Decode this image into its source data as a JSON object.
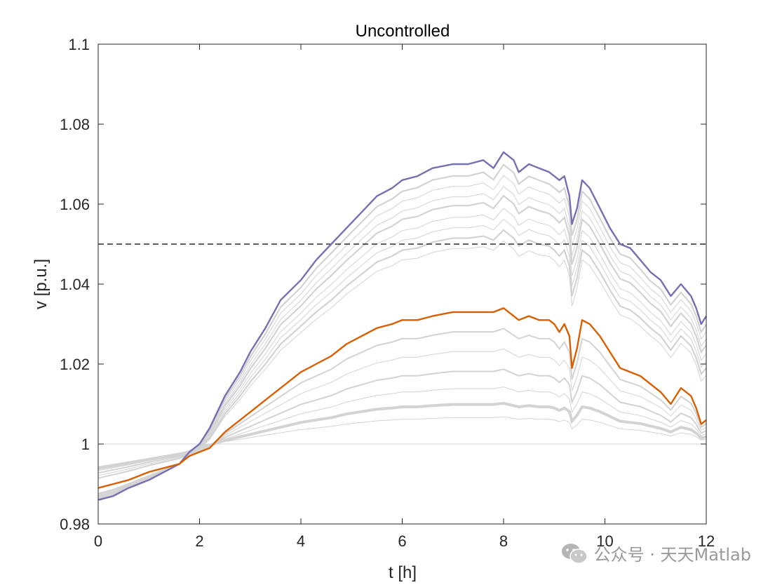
{
  "chart_data": {
    "type": "line",
    "title": "Uncontrolled",
    "xlabel": "t [h]",
    "ylabel": "v [p.u.]",
    "xlim": [
      0,
      12
    ],
    "ylim": [
      0.98,
      1.1
    ],
    "xticks": [
      "0",
      "2",
      "4",
      "6",
      "8",
      "10",
      "12"
    ],
    "yticks": [
      "0.98",
      "1",
      "1.02",
      "1.04",
      "1.06",
      "1.08",
      "1.1"
    ],
    "grid": false,
    "reference_line": {
      "y": 1.05,
      "style": "dashed",
      "color": "#000000"
    },
    "highlight_series": [
      {
        "color": "#7570b3",
        "x": [
          0,
          0.3,
          0.6,
          1.0,
          1.3,
          1.6,
          1.8,
          2.0,
          2.2,
          2.5,
          2.8,
          3.0,
          3.3,
          3.6,
          4.0,
          4.3,
          4.6,
          4.9,
          5.2,
          5.5,
          5.8,
          6.0,
          6.3,
          6.6,
          7.0,
          7.3,
          7.6,
          7.8,
          8.0,
          8.2,
          8.3,
          8.5,
          8.7,
          8.9,
          9.0,
          9.1,
          9.2,
          9.3,
          9.35,
          9.45,
          9.55,
          9.7,
          9.9,
          10.1,
          10.3,
          10.5,
          10.7,
          10.9,
          11.1,
          11.3,
          11.5,
          11.7,
          11.8,
          11.9,
          12.0
        ],
        "y": [
          0.986,
          0.987,
          0.989,
          0.991,
          0.993,
          0.995,
          0.998,
          1.0,
          1.004,
          1.012,
          1.018,
          1.023,
          1.029,
          1.036,
          1.041,
          1.046,
          1.05,
          1.054,
          1.058,
          1.062,
          1.064,
          1.066,
          1.067,
          1.069,
          1.07,
          1.07,
          1.071,
          1.069,
          1.073,
          1.071,
          1.068,
          1.07,
          1.069,
          1.068,
          1.067,
          1.066,
          1.067,
          1.062,
          1.055,
          1.059,
          1.066,
          1.064,
          1.059,
          1.054,
          1.05,
          1.049,
          1.046,
          1.043,
          1.041,
          1.037,
          1.04,
          1.037,
          1.034,
          1.03,
          1.032
        ]
      },
      {
        "color": "#d95f02",
        "x": [
          0,
          0.3,
          0.6,
          1.0,
          1.3,
          1.6,
          1.8,
          2.0,
          2.2,
          2.5,
          2.8,
          3.0,
          3.3,
          3.6,
          4.0,
          4.3,
          4.6,
          4.9,
          5.2,
          5.5,
          5.8,
          6.0,
          6.3,
          6.6,
          7.0,
          7.3,
          7.6,
          7.8,
          8.0,
          8.2,
          8.3,
          8.5,
          8.7,
          8.9,
          9.0,
          9.1,
          9.2,
          9.3,
          9.35,
          9.45,
          9.55,
          9.7,
          9.9,
          10.1,
          10.3,
          10.5,
          10.7,
          10.9,
          11.1,
          11.3,
          11.5,
          11.7,
          11.8,
          11.9,
          12.0
        ],
        "y": [
          0.989,
          0.99,
          0.991,
          0.993,
          0.994,
          0.995,
          0.997,
          0.998,
          0.999,
          1.003,
          1.006,
          1.008,
          1.011,
          1.014,
          1.018,
          1.02,
          1.022,
          1.025,
          1.027,
          1.029,
          1.03,
          1.031,
          1.031,
          1.032,
          1.033,
          1.033,
          1.033,
          1.033,
          1.034,
          1.032,
          1.031,
          1.032,
          1.031,
          1.031,
          1.03,
          1.028,
          1.03,
          1.027,
          1.019,
          1.024,
          1.031,
          1.03,
          1.027,
          1.023,
          1.019,
          1.018,
          1.017,
          1.015,
          1.013,
          1.01,
          1.014,
          1.012,
          1.009,
          1.005,
          1.006
        ]
      }
    ],
    "background_series_color": "#d3d3d3"
  },
  "watermark": {
    "text": "公众号 · 天天Matlab",
    "icon": "wechat-icon"
  }
}
